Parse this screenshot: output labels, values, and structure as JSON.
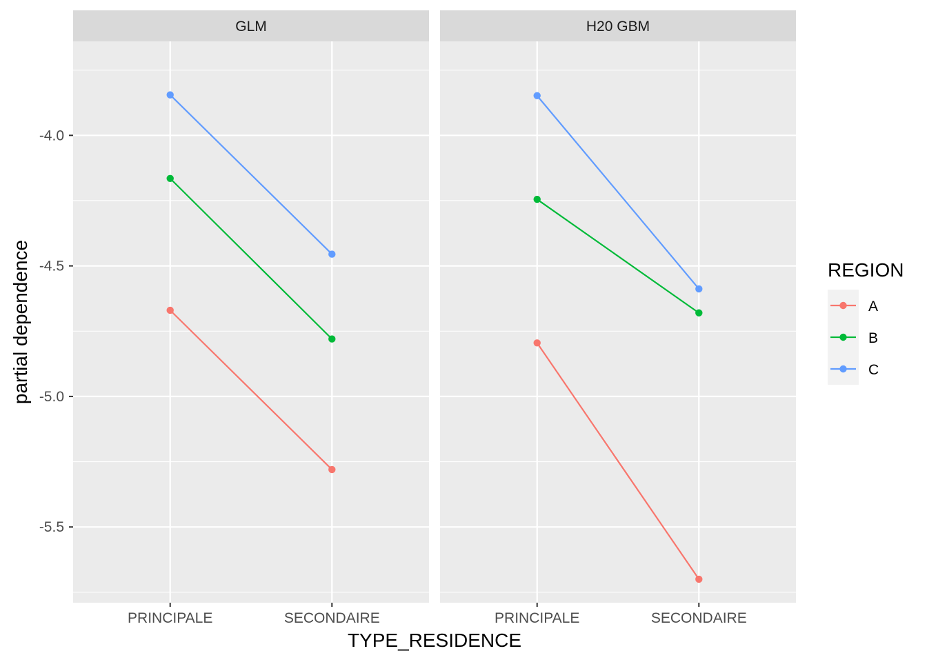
{
  "chart_data": {
    "type": "line",
    "xlabel": "TYPE_RESIDENCE",
    "ylabel": "partial dependence",
    "categories": [
      "PRINCIPALE",
      "SECONDAIRE"
    ],
    "ylim": [
      -5.79,
      -3.64
    ],
    "yticks": [
      -5.5,
      -5.0,
      -4.5,
      -4.0
    ],
    "ytick_labels": [
      "-5.5",
      "-5.0",
      "-4.5",
      "-4.0"
    ],
    "grid": true,
    "legend": {
      "title": "REGION",
      "position": "right"
    },
    "panels": [
      {
        "title": "GLM",
        "series": [
          {
            "name": "A",
            "values": [
              -4.67,
              -5.28
            ]
          },
          {
            "name": "B",
            "values": [
              -4.165,
              -4.78
            ]
          },
          {
            "name": "C",
            "values": [
              -3.845,
              -4.455
            ]
          }
        ]
      },
      {
        "title": "H20 GBM",
        "series": [
          {
            "name": "A",
            "values": [
              -4.795,
              -5.7
            ]
          },
          {
            "name": "B",
            "values": [
              -4.245,
              -4.68
            ]
          },
          {
            "name": "C",
            "values": [
              -3.848,
              -4.588
            ]
          }
        ]
      }
    ],
    "colors": {
      "A": "#F8766D",
      "B": "#00BA38",
      "C": "#619CFF"
    },
    "panel_background": "#EBEBEB",
    "strip_background": "#D9D9D9",
    "grid_color": "#FFFFFF"
  }
}
